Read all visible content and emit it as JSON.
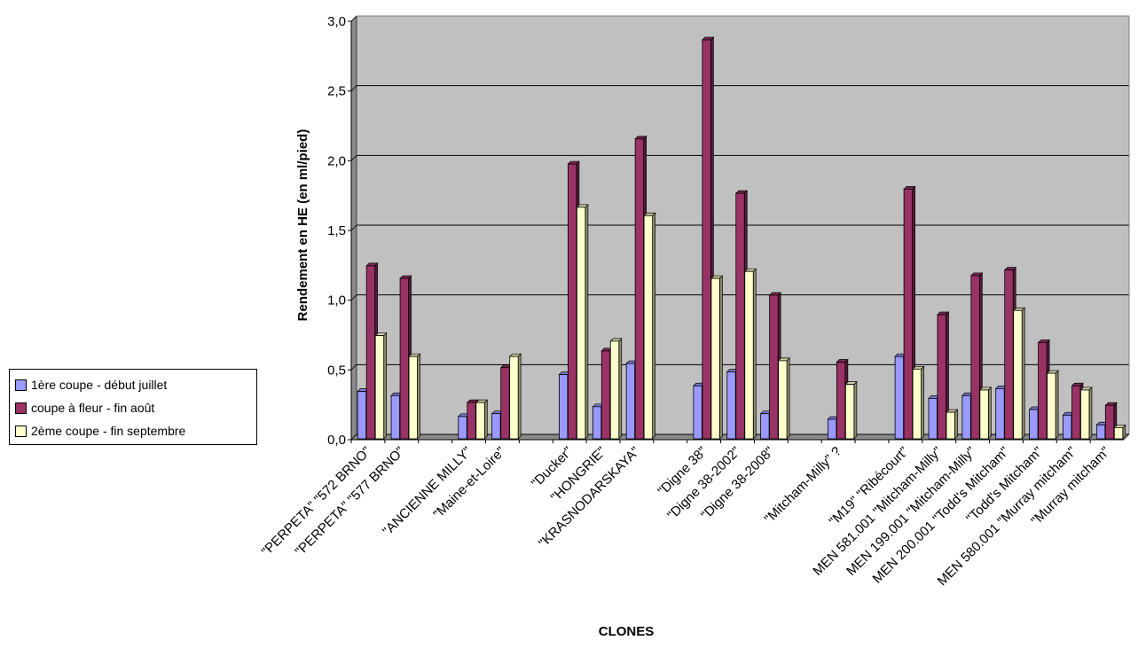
{
  "chart_data": {
    "type": "bar",
    "title": "",
    "xlabel": "CLONES",
    "ylabel": "Rendement en HE (en ml/pied)",
    "ylim": [
      0,
      3.0
    ],
    "y_ticks": [
      "0,0",
      "0,5",
      "1,0",
      "1,5",
      "2,0",
      "2,5",
      "3,0"
    ],
    "grid": true,
    "legend_position": "left",
    "style": "3d",
    "categories": [
      "\"PERPETA\" \"572 BRNO\"",
      "\"PERPETA\" \"577 BRNO\"",
      "",
      "\"ANCIENNE MILLY\"",
      "\"Maine-et-Loire\"",
      "",
      "\"Ducker\"",
      "\"HONGRIE\"",
      "\"KRASNODARSKAYA\"",
      "",
      "\"Digne 38\"",
      "\"Digne 38-2002\"",
      "\"Digne 38-2008\"",
      "",
      "\"Mitcham-Milly\" ?",
      "",
      "\"M19\" \"Ribécourt\"",
      "MEN 581.001 \"Mitcham-Milly\"",
      "MEN 199.001 \"Mitcham-Milly\"",
      "MEN 200.001 \"Todd's Mitcham\"",
      "\"Todd's Mitcham\"",
      "MEN 580.001 \"Murray mitcham\"",
      "\"Murray mitcham\""
    ],
    "series": [
      {
        "name": "1ère coupe - début juillet",
        "color": "#9999ff",
        "values": [
          0.34,
          0.31,
          null,
          0.16,
          0.18,
          null,
          0.46,
          0.23,
          0.54,
          null,
          0.38,
          0.48,
          0.18,
          null,
          0.14,
          null,
          0.59,
          0.29,
          0.31,
          0.36,
          0.21,
          0.17,
          0.1
        ]
      },
      {
        "name": "coupe à fleur - fin août",
        "color": "#993366",
        "values": [
          1.24,
          1.15,
          null,
          0.26,
          0.51,
          null,
          1.97,
          0.63,
          2.15,
          null,
          2.86,
          1.76,
          1.03,
          null,
          0.55,
          null,
          1.79,
          0.89,
          1.17,
          1.21,
          0.69,
          0.38,
          0.24
        ]
      },
      {
        "name": "2ème coupe - fin septembre",
        "color": "#ffffcc",
        "values": [
          0.74,
          0.59,
          null,
          0.26,
          0.59,
          null,
          1.66,
          0.7,
          1.6,
          null,
          1.15,
          1.2,
          0.56,
          null,
          0.39,
          null,
          0.5,
          0.19,
          0.35,
          0.92,
          0.47,
          0.35,
          0.08
        ]
      }
    ]
  }
}
